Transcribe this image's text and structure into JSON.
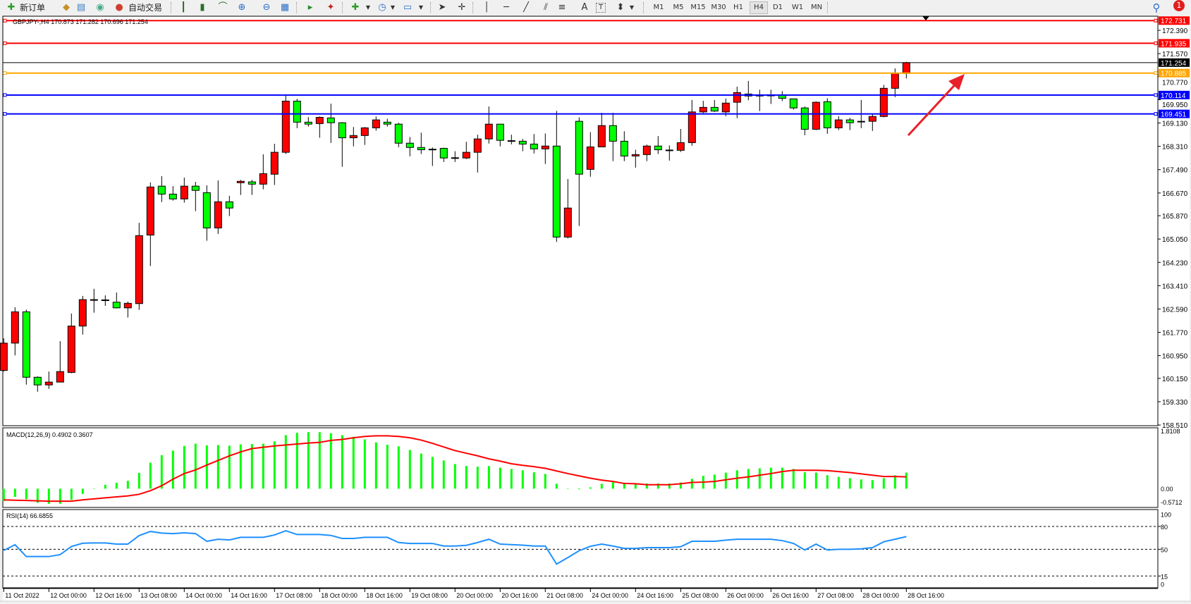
{
  "toolbar": {
    "new_order_label": "新订单",
    "auto_trading_label": "自动交易",
    "text_tool_label": "A",
    "timeframes": [
      "M1",
      "M5",
      "M15",
      "M30",
      "H1",
      "H4",
      "D1",
      "W1",
      "MN"
    ],
    "active_timeframe": "H4",
    "notification_count": "1"
  },
  "chart": {
    "header": "GBPJPY-,H4  170.873 171.282 170.696 171.254",
    "price_axis": [
      "172.390",
      "171.570",
      "170.770",
      "169.950",
      "169.130",
      "168.310",
      "167.490",
      "166.670",
      "165.870",
      "165.050",
      "164.230",
      "163.410",
      "162.590",
      "161.770",
      "160.950",
      "160.150",
      "159.330",
      "158.510"
    ],
    "levels": [
      {
        "price": "172.731",
        "color": "#ff0000"
      },
      {
        "price": "171.935",
        "color": "#ff0000"
      },
      {
        "price": "171.254",
        "color": "#000000"
      },
      {
        "price": "170.885",
        "color": "#ffa500"
      },
      {
        "price": "170.114",
        "color": "#0000ff"
      },
      {
        "price": "169.451",
        "color": "#0000ff"
      }
    ],
    "time_axis": [
      "11 Oct 2022",
      "12 Oct 00:00",
      "12 Oct 16:00",
      "13 Oct 08:00",
      "14 Oct 00:00",
      "14 Oct 16:00",
      "17 Oct 08:00",
      "18 Oct 00:00",
      "18 Oct 16:00",
      "19 Oct 08:00",
      "20 Oct 00:00",
      "20 Oct 16:00",
      "21 Oct 08:00",
      "24 Oct 00:00",
      "24 Oct 16:00",
      "25 Oct 08:00",
      "26 Oct 00:00",
      "26 Oct 16:00",
      "27 Oct 08:00",
      "28 Oct 00:00",
      "28 Oct 16:00"
    ],
    "bull_color": "#ff0000",
    "bear_color": "#00ff00",
    "annotation_arrow_color": "#e8202a"
  },
  "macd": {
    "label": "MACD(12,26,9) 0.4902 0.3607",
    "axis": [
      "1.8108",
      "0.00",
      "-0.5712"
    ],
    "histogram_color": "#00ff00",
    "signal_color": "#ff0000"
  },
  "rsi": {
    "label": "RSI(14) 66.6855",
    "axis": [
      "100",
      "80",
      "50",
      "15",
      "0"
    ],
    "line_color": "#1e90ff"
  },
  "chart_data": {
    "type": "candlestick",
    "symbol": "GBPJPY-",
    "timeframe": "H4",
    "ylim": [
      158.51,
      172.731
    ],
    "ohlc": [
      [
        160.43,
        161.56,
        160.39,
        161.39
      ],
      [
        161.39,
        162.65,
        160.96,
        162.49
      ],
      [
        162.49,
        162.57,
        159.93,
        160.19
      ],
      [
        160.19,
        160.22,
        159.68,
        159.92
      ],
      [
        159.92,
        160.39,
        159.78,
        160.02
      ],
      [
        160.02,
        161.46,
        160.02,
        160.39
      ],
      [
        160.36,
        162.43,
        160.33,
        161.99
      ],
      [
        161.99,
        163.05,
        161.69,
        162.92
      ],
      [
        162.92,
        163.3,
        162.46,
        162.9
      ],
      [
        162.9,
        163.07,
        162.7,
        162.91
      ],
      [
        162.83,
        163.17,
        162.61,
        162.63
      ],
      [
        162.63,
        162.85,
        162.29,
        162.79
      ],
      [
        162.78,
        165.62,
        162.56,
        165.17
      ],
      [
        165.19,
        167.04,
        164.1,
        166.88
      ],
      [
        166.91,
        167.26,
        166.35,
        166.63
      ],
      [
        166.63,
        166.91,
        166.4,
        166.46
      ],
      [
        166.46,
        167.21,
        166.33,
        166.91
      ],
      [
        166.91,
        167.06,
        166.03,
        166.76
      ],
      [
        166.68,
        166.94,
        164.99,
        165.44
      ],
      [
        165.44,
        167.11,
        165.23,
        166.36
      ],
      [
        166.36,
        166.57,
        165.86,
        166.14
      ],
      [
        167.03,
        167.13,
        166.6,
        167.08
      ],
      [
        167.06,
        167.13,
        166.6,
        166.98
      ],
      [
        166.98,
        168.03,
        166.8,
        167.35
      ],
      [
        167.33,
        168.4,
        166.95,
        168.1
      ],
      [
        168.1,
        170.09,
        168.04,
        169.9
      ],
      [
        169.9,
        169.98,
        168.95,
        169.16
      ],
      [
        169.16,
        169.34,
        169.0,
        169.09
      ],
      [
        169.11,
        169.36,
        168.61,
        169.33
      ],
      [
        169.31,
        169.81,
        168.43,
        169.14
      ],
      [
        169.14,
        169.16,
        167.59,
        168.61
      ],
      [
        168.61,
        168.99,
        168.31,
        168.69
      ],
      [
        168.69,
        168.99,
        168.36,
        168.96
      ],
      [
        168.96,
        169.36,
        168.86,
        169.24
      ],
      [
        169.16,
        169.28,
        169.0,
        169.09
      ],
      [
        169.09,
        169.14,
        168.28,
        168.42
      ],
      [
        168.42,
        168.64,
        167.96,
        168.27
      ],
      [
        168.27,
        168.79,
        168.04,
        168.19
      ],
      [
        168.21,
        168.27,
        167.62,
        168.2
      ],
      [
        168.24,
        168.26,
        167.76,
        167.9
      ],
      [
        167.9,
        168.14,
        167.76,
        167.91
      ],
      [
        167.9,
        168.47,
        167.86,
        168.1
      ],
      [
        168.1,
        168.72,
        167.39,
        168.57
      ],
      [
        168.57,
        169.71,
        168.41,
        169.09
      ],
      [
        169.09,
        169.09,
        168.31,
        168.52
      ],
      [
        168.51,
        168.72,
        168.38,
        168.5
      ],
      [
        168.49,
        168.57,
        168.14,
        168.39
      ],
      [
        168.39,
        168.74,
        168.06,
        168.22
      ],
      [
        168.22,
        168.76,
        167.69,
        168.32
      ],
      [
        168.32,
        169.56,
        164.95,
        165.12
      ],
      [
        165.12,
        167.16,
        165.07,
        166.14
      ],
      [
        169.19,
        169.33,
        165.51,
        167.33
      ],
      [
        167.5,
        168.81,
        167.24,
        168.29
      ],
      [
        168.29,
        169.49,
        168.29,
        169.04
      ],
      [
        169.04,
        169.49,
        167.79,
        168.49
      ],
      [
        168.49,
        168.84,
        167.79,
        167.97
      ],
      [
        167.97,
        168.19,
        167.56,
        168.02
      ],
      [
        168.02,
        168.37,
        167.79,
        168.32
      ],
      [
        168.32,
        168.67,
        168.04,
        168.19
      ],
      [
        168.18,
        168.34,
        167.81,
        168.18
      ],
      [
        168.17,
        168.92,
        168.11,
        168.44
      ],
      [
        168.44,
        169.94,
        168.33,
        169.52
      ],
      [
        169.52,
        169.91,
        169.48,
        169.68
      ],
      [
        169.68,
        169.94,
        169.52,
        169.55
      ],
      [
        169.52,
        169.99,
        169.37,
        169.83
      ],
      [
        169.86,
        170.41,
        169.3,
        170.2
      ],
      [
        170.15,
        170.61,
        169.93,
        170.08
      ],
      [
        170.08,
        170.3,
        169.55,
        170.11
      ],
      [
        170.11,
        170.3,
        169.8,
        170.11
      ],
      [
        170.12,
        170.25,
        169.9,
        170.0
      ],
      [
        169.98,
        169.99,
        169.6,
        169.66
      ],
      [
        169.66,
        169.71,
        168.7,
        168.91
      ],
      [
        168.91,
        169.89,
        168.88,
        169.86
      ],
      [
        169.88,
        170.0,
        168.75,
        168.96
      ],
      [
        168.96,
        169.37,
        168.88,
        169.24
      ],
      [
        169.24,
        169.31,
        168.88,
        169.14
      ],
      [
        169.17,
        169.94,
        168.95,
        169.19
      ],
      [
        169.19,
        169.45,
        168.85,
        169.36
      ],
      [
        169.36,
        170.47,
        169.33,
        170.35
      ],
      [
        170.35,
        171.05,
        170.04,
        170.87
      ],
      [
        170.873,
        171.282,
        170.696,
        171.254
      ]
    ],
    "macd_histogram": [
      -0.38,
      -0.25,
      -0.32,
      -0.43,
      -0.46,
      -0.46,
      -0.34,
      -0.16,
      -0.01,
      0.12,
      0.18,
      0.24,
      0.48,
      0.79,
      1.02,
      1.16,
      1.3,
      1.37,
      1.32,
      1.33,
      1.31,
      1.35,
      1.36,
      1.37,
      1.44,
      1.63,
      1.7,
      1.72,
      1.72,
      1.69,
      1.63,
      1.58,
      1.5,
      1.41,
      1.34,
      1.29,
      1.18,
      1.07,
      0.97,
      0.86,
      0.75,
      0.69,
      0.67,
      0.69,
      0.64,
      0.6,
      0.56,
      0.5,
      0.45,
      0.15,
      0.0,
      -0.02,
      0.04,
      0.15,
      0.22,
      0.16,
      0.16,
      0.16,
      0.16,
      0.16,
      0.19,
      0.3,
      0.39,
      0.43,
      0.49,
      0.56,
      0.6,
      0.62,
      0.64,
      0.64,
      0.6,
      0.5,
      0.49,
      0.41,
      0.36,
      0.32,
      0.28,
      0.26,
      0.32,
      0.41,
      0.4902
    ],
    "macd_signal": [
      -0.34,
      -0.35,
      -0.36,
      -0.37,
      -0.38,
      -0.38,
      -0.38,
      -0.34,
      -0.31,
      -0.28,
      -0.25,
      -0.22,
      -0.17,
      -0.06,
      0.09,
      0.29,
      0.46,
      0.57,
      0.72,
      0.86,
      1.0,
      1.12,
      1.22,
      1.26,
      1.3,
      1.33,
      1.36,
      1.39,
      1.41,
      1.47,
      1.5,
      1.55,
      1.59,
      1.61,
      1.61,
      1.59,
      1.55,
      1.48,
      1.38,
      1.27,
      1.16,
      1.08,
      1.0,
      0.91,
      0.84,
      0.76,
      0.71,
      0.67,
      0.62,
      0.54,
      0.46,
      0.39,
      0.32,
      0.26,
      0.22,
      0.16,
      0.15,
      0.12,
      0.12,
      0.12,
      0.15,
      0.19,
      0.2,
      0.22,
      0.27,
      0.32,
      0.36,
      0.41,
      0.46,
      0.52,
      0.56,
      0.56,
      0.56,
      0.55,
      0.52,
      0.49,
      0.45,
      0.41,
      0.37,
      0.37,
      0.3607
    ],
    "macd_ylim": [
      -0.5712,
      1.8108
    ],
    "rsi_values": [
      48.5,
      56,
      40.5,
      40.5,
      40.5,
      43,
      53.7,
      58,
      58.3,
      58.3,
      56.8,
      56.8,
      68,
      73.4,
      71.3,
      70.6,
      71.6,
      70.6,
      60.5,
      63.2,
      62.3,
      65.7,
      65.7,
      65.7,
      68.8,
      74.3,
      69.4,
      69.4,
      69.4,
      68.2,
      64.2,
      64.2,
      65.7,
      65.7,
      65.7,
      58.9,
      57.7,
      57.7,
      57.7,
      54.3,
      54.3,
      55.2,
      58.9,
      63.2,
      56.8,
      56.2,
      55.5,
      54.3,
      54.3,
      30.6,
      39.2,
      48.2,
      54,
      56.8,
      54.3,
      51.2,
      51.2,
      52.2,
      52.2,
      52.2,
      53.4,
      60.5,
      60.5,
      60.5,
      62,
      63.2,
      63.2,
      63.2,
      63.2,
      61.4,
      57.7,
      49.1,
      56.8,
      49.1,
      50,
      50,
      50.6,
      52.2,
      59.9,
      63.2,
      66.6855
    ],
    "rsi_levels": [
      80,
      50,
      15
    ],
    "rsi_ylim": [
      0,
      100
    ]
  }
}
